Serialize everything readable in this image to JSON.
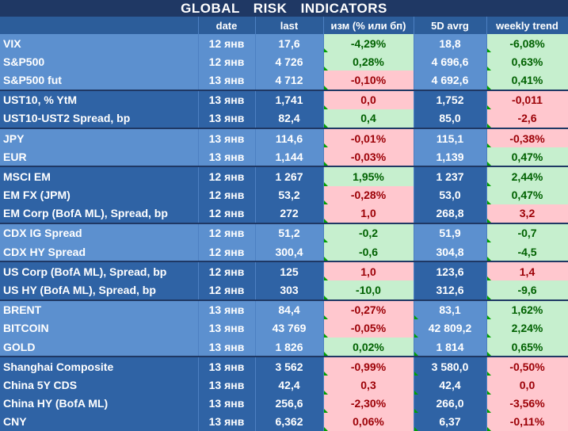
{
  "title": "GLOBAL   RISK   INDICATORS",
  "headers": {
    "name": "",
    "date": "date",
    "last": "last",
    "change": "изм (% или бп)",
    "avg5d": "5D avrg",
    "weekly": "weekly trend"
  },
  "colors": {
    "positive_bg": "#c6efce",
    "positive_text": "#006100",
    "negative_bg": "#ffc7ce",
    "negative_text": "#9c0006",
    "row_light": "#5c90cf",
    "row_dark": "#2f63a5",
    "title_bg": "#1f3864"
  },
  "rows": [
    {
      "name": "VIX",
      "date": "12 янв",
      "last": "17,6",
      "change": "-4,29%",
      "avg": "18,8",
      "weekly": "-6,08%",
      "chg_tone": "pos",
      "wk_tone": "pos",
      "group": "light",
      "sep": false
    },
    {
      "name": "S&P500",
      "date": "12 янв",
      "last": "4 726",
      "change": "0,28%",
      "avg": "4 696,6",
      "weekly": "0,63%",
      "chg_tone": "pos",
      "wk_tone": "pos",
      "group": "light",
      "sep": false
    },
    {
      "name": "S&P500 fut",
      "date": "13 янв",
      "last": "4 712",
      "change": "-0,10%",
      "avg": "4 692,6",
      "weekly": "0,41%",
      "chg_tone": "neg",
      "wk_tone": "pos",
      "group": "light",
      "sep": false
    },
    {
      "name": "UST10, % YtM",
      "date": "13 янв",
      "last": "1,741",
      "change": "0,0",
      "avg": "1,752",
      "weekly": "-0,011",
      "chg_tone": "neg",
      "wk_tone": "neg",
      "group": "dark",
      "sep": true
    },
    {
      "name": "UST10-UST2 Spread, bp",
      "date": "13 янв",
      "last": "82,4",
      "change": "0,4",
      "avg": "85,0",
      "weekly": "-2,6",
      "chg_tone": "pos",
      "wk_tone": "neg",
      "group": "dark",
      "sep": false
    },
    {
      "name": "JPY",
      "date": "13 янв",
      "last": "114,6",
      "change": "-0,01%",
      "avg": "115,1",
      "weekly": "-0,38%",
      "chg_tone": "neg",
      "wk_tone": "neg",
      "group": "light",
      "sep": true
    },
    {
      "name": "EUR",
      "date": "13 янв",
      "last": "1,144",
      "change": "-0,03%",
      "avg": "1,139",
      "weekly": "0,47%",
      "chg_tone": "neg",
      "wk_tone": "pos",
      "group": "light",
      "sep": false
    },
    {
      "name": "MSCI EM",
      "date": "12 янв",
      "last": "1 267",
      "change": "1,95%",
      "avg": "1 237",
      "weekly": "2,44%",
      "chg_tone": "pos",
      "wk_tone": "pos",
      "group": "dark",
      "sep": true
    },
    {
      "name": "EM FX (JPM)",
      "date": "12 янв",
      "last": "53,2",
      "change": "-0,28%",
      "avg": "53,0",
      "weekly": "0,47%",
      "chg_tone": "neg",
      "wk_tone": "pos",
      "group": "dark",
      "sep": false
    },
    {
      "name": "EM Corp (BofA ML), Spread, bp",
      "date": "12 янв",
      "last": "272",
      "change": "1,0",
      "avg": "268,8",
      "weekly": "3,2",
      "chg_tone": "neg",
      "wk_tone": "neg",
      "group": "dark",
      "sep": false
    },
    {
      "name": "CDX IG Spread",
      "date": "12 янв",
      "last": "51,2",
      "change": "-0,2",
      "avg": "51,9",
      "weekly": "-0,7",
      "chg_tone": "pos",
      "wk_tone": "pos",
      "group": "light",
      "sep": true
    },
    {
      "name": "CDX HY Spread",
      "date": "12 янв",
      "last": "300,4",
      "change": "-0,6",
      "avg": "304,8",
      "weekly": "-4,5",
      "chg_tone": "pos",
      "wk_tone": "pos",
      "group": "light",
      "sep": false
    },
    {
      "name": "US Corp (BofA ML), Spread, bp",
      "date": "12 янв",
      "last": "125",
      "change": "1,0",
      "avg": "123,6",
      "weekly": "1,4",
      "chg_tone": "neg",
      "wk_tone": "neg",
      "group": "dark",
      "sep": true
    },
    {
      "name": "US HY (BofA ML), Spread, bp",
      "date": "12 янв",
      "last": "303",
      "change": "-10,0",
      "avg": "312,6",
      "weekly": "-9,6",
      "chg_tone": "pos",
      "wk_tone": "pos",
      "group": "dark",
      "sep": false
    },
    {
      "name": "BRENT",
      "date": "13 янв",
      "last": "84,4",
      "change": "-0,27%",
      "avg": "83,1",
      "weekly": "1,62%",
      "chg_tone": "neg",
      "wk_tone": "pos",
      "group": "light",
      "sep": true
    },
    {
      "name": "BITCOIN",
      "date": "13 янв",
      "last": "43 769",
      "change": "-0,05%",
      "avg": "42 809,2",
      "weekly": "2,24%",
      "chg_tone": "neg",
      "wk_tone": "pos",
      "group": "light",
      "sep": false
    },
    {
      "name": "GOLD",
      "date": "13 янв",
      "last": "1 826",
      "change": "0,02%",
      "avg": "1 814",
      "weekly": "0,65%",
      "chg_tone": "pos",
      "wk_tone": "pos",
      "group": "light",
      "sep": false
    },
    {
      "name": "Shanghai Composite",
      "date": "13 янв",
      "last": "3 562",
      "change": "-0,99%",
      "avg": "3 580,0",
      "weekly": "-0,50%",
      "chg_tone": "neg",
      "wk_tone": "neg",
      "group": "dark",
      "sep": true
    },
    {
      "name": "China 5Y CDS",
      "date": "13 янв",
      "last": "42,4",
      "change": "0,3",
      "avg": "42,4",
      "weekly": "0,0",
      "chg_tone": "neg",
      "wk_tone": "neg",
      "group": "dark",
      "sep": false
    },
    {
      "name": "China HY (BofA ML)",
      "date": "13 янв",
      "last": "256,6",
      "change": "-2,30%",
      "avg": "266,0",
      "weekly": "-3,56%",
      "chg_tone": "neg",
      "wk_tone": "neg",
      "group": "dark",
      "sep": false
    },
    {
      "name": "CNY",
      "date": "13 янв",
      "last": "6,362",
      "change": "0,06%",
      "avg": "6,37",
      "weekly": "-0,11%",
      "chg_tone": "neg",
      "wk_tone": "neg",
      "group": "dark",
      "sep": false
    }
  ]
}
